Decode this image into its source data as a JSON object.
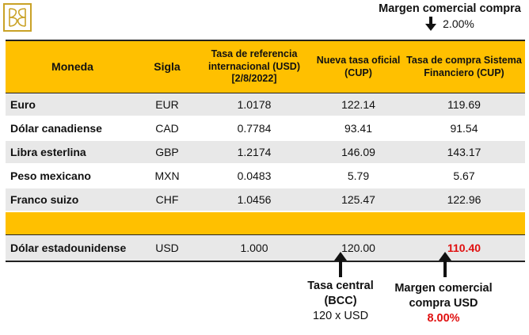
{
  "logo": {
    "icon": "bank-logo-icon",
    "color": "#c9a227"
  },
  "top_note": {
    "title": "Margen comercial compra",
    "value": "2.00%"
  },
  "table": {
    "headers": [
      "Moneda",
      "Sigla",
      "Tasa de referencia internacional (USD) [2/8/2022]",
      "Nueva tasa oficial (CUP)",
      "Tasa de compra Sistema Financiero (CUP)"
    ],
    "rows": [
      [
        "Euro",
        "EUR",
        "1.0178",
        "122.14",
        "119.69"
      ],
      [
        "Dólar canadiense",
        "CAD",
        "0.7784",
        "93.41",
        "91.54"
      ],
      [
        "Libra esterlina",
        "GBP",
        "1.2174",
        "146.09",
        "143.17"
      ],
      [
        "Peso mexicano",
        "MXN",
        "0.0483",
        "5.79",
        "5.67"
      ],
      [
        "Franco suizo",
        "CHF",
        "1.0456",
        "125.47",
        "122.96"
      ]
    ],
    "usd_row": [
      "Dólar estadounidense",
      "USD",
      "1.000",
      "120.00",
      "110.40"
    ],
    "header_color": "#ffc000",
    "highlight_color": "#e01010"
  },
  "note_central": {
    "line1": "Tasa central",
    "line2": "(BCC)",
    "line3": "120 x USD"
  },
  "note_margin": {
    "line1": "Margen comercial",
    "line2": "compra USD",
    "line3": "8.00%"
  }
}
